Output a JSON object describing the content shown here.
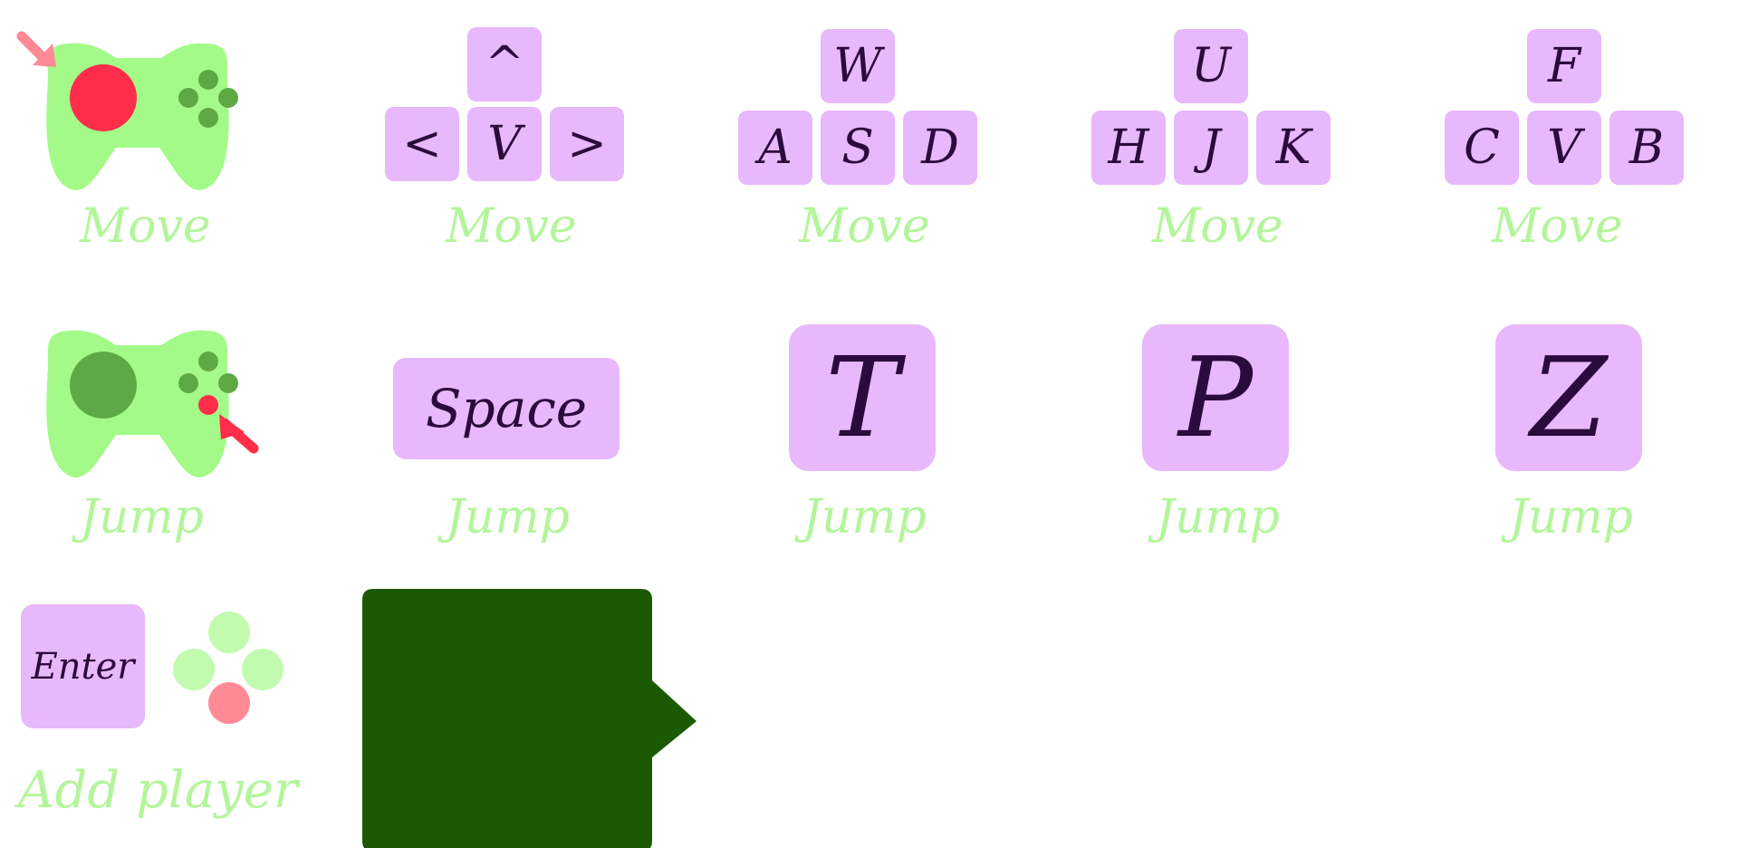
{
  "colors": {
    "controller_body": "#a4fa88",
    "controller_dark": "#5fa944",
    "highlight_red": "#ff2d4a",
    "highlight_pink": "#ff8a96",
    "key_bg": "#e7b8fb",
    "key_text": "#2b0a3d",
    "label_text": "#b4f59b",
    "panel_green": "#1b5a03",
    "button_light": "#c2fbb0"
  },
  "move_row": {
    "gamepad": {
      "icon": "gamepad-left-stick-icon",
      "label": "Move"
    },
    "arrows": {
      "up": "^",
      "left": "<",
      "down": "V",
      "right": ">",
      "label": "Move"
    },
    "wasd": {
      "up": "W",
      "left": "A",
      "down": "S",
      "right": "D",
      "label": "Move"
    },
    "uhjk": {
      "up": "U",
      "left": "H",
      "down": "J",
      "right": "K",
      "label": "Move"
    },
    "fcvb": {
      "up": "F",
      "left": "C",
      "down": "V",
      "right": "B",
      "label": "Move"
    }
  },
  "jump_row": {
    "gamepad": {
      "icon": "gamepad-button-icon",
      "label": "Jump"
    },
    "space": {
      "key": "Space",
      "label": "Jump"
    },
    "t": {
      "key": "T",
      "label": "Jump"
    },
    "p": {
      "key": "P",
      "label": "Jump"
    },
    "z": {
      "key": "Z",
      "label": "Jump"
    }
  },
  "add_player": {
    "enter_key": "Enter",
    "button_icon": "gamepad-face-buttons-icon",
    "label": "Add player"
  },
  "panel": {
    "icon": "speech-bubble-panel"
  }
}
